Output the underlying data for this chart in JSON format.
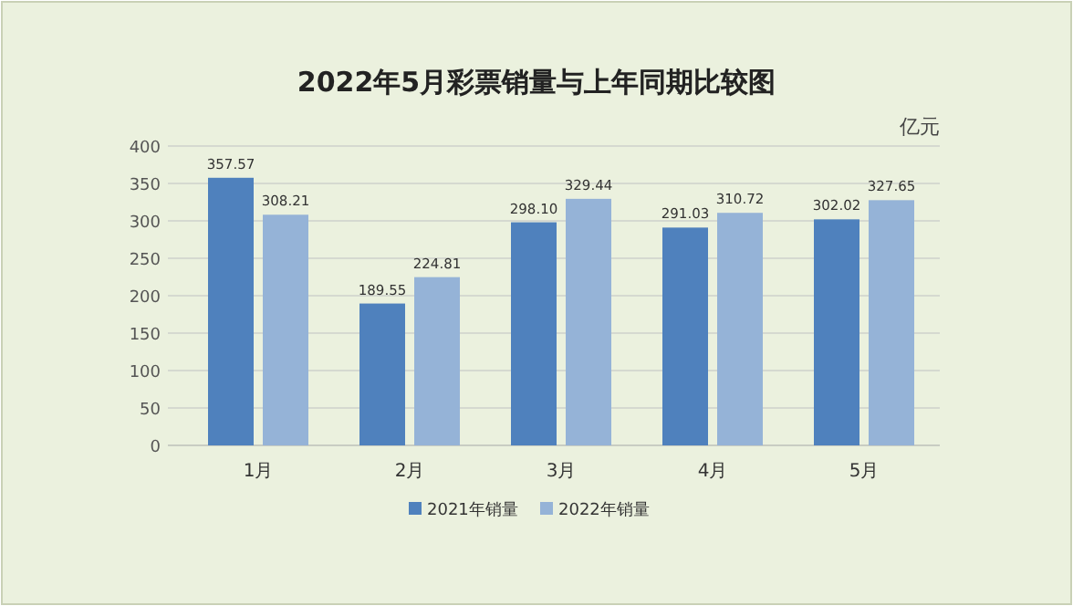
{
  "chart_data": {
    "type": "bar",
    "title": "2022年5月彩票销量与上年同期比较图",
    "ylabel": "亿元",
    "categories": [
      "1月",
      "2月",
      "3月",
      "4月",
      "5月"
    ],
    "series": [
      {
        "name": "2021年销量",
        "color": "#4f81bd",
        "values": [
          357.57,
          189.55,
          298.1,
          291.03,
          302.02
        ],
        "value_labels": [
          "357.57",
          "189.55",
          "298.10",
          "291.03",
          "302.02"
        ]
      },
      {
        "name": "2022年销量",
        "color": "#95b3d7",
        "values": [
          308.21,
          224.81,
          329.44,
          310.72,
          327.65
        ],
        "value_labels": [
          "308.21",
          "224.81",
          "329.44",
          "310.72",
          "327.65"
        ]
      }
    ],
    "ylim": [
      0,
      400
    ],
    "yticks": [
      0,
      50,
      100,
      150,
      200,
      250,
      300,
      350,
      400
    ],
    "grid": "y",
    "legend": "bottom"
  }
}
